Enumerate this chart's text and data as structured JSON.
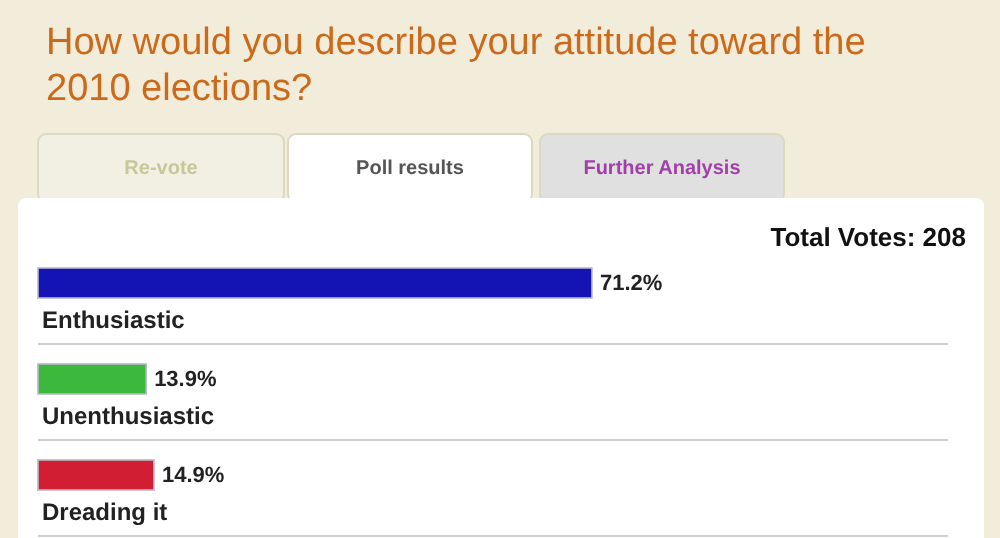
{
  "chart_data": {
    "type": "bar",
    "orientation": "horizontal",
    "title": "How would you describe your attitude toward the 2010 elections?",
    "categories": [
      "Enthusiastic",
      "Unenthusiastic",
      "Dreading it"
    ],
    "values": [
      71.2,
      13.9,
      14.9
    ],
    "colors": [
      "#1414b4",
      "#3cb83c",
      "#d21e32"
    ],
    "value_labels": [
      "71.2%",
      "13.9%",
      "14.9%"
    ],
    "annotations": [
      "Re-vote",
      "Poll results",
      "Further Analysis",
      "Total Votes: 208"
    ]
  }
}
